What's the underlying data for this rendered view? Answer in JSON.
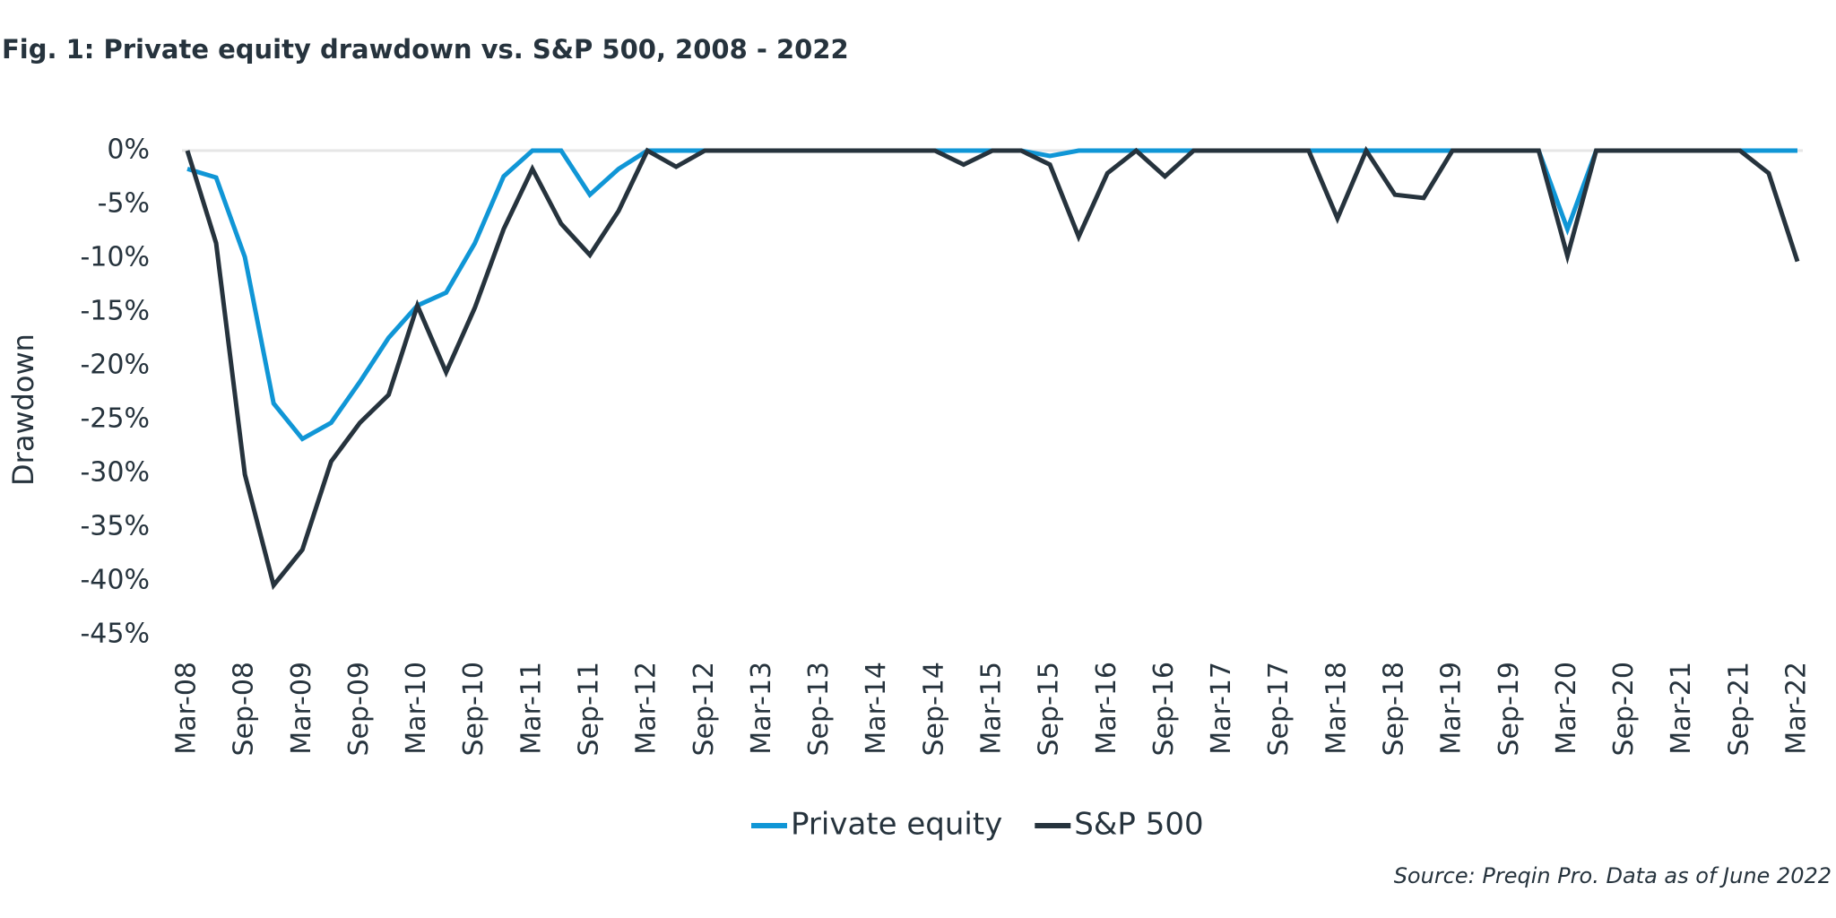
{
  "chart_data": {
    "type": "line",
    "title": "Fig. 1: Private equity drawdown vs. S&P 500, 2008 - 2022",
    "ylabel": "Drawdown",
    "source": "Source: Preqin Pro. Data as of June 2022",
    "categories": [
      "Mar-08",
      null,
      "Sep-08",
      null,
      "Mar-09",
      null,
      "Sep-09",
      null,
      "Mar-10",
      null,
      "Sep-10",
      null,
      "Mar-11",
      null,
      "Sep-11",
      null,
      "Mar-12",
      null,
      "Sep-12",
      null,
      "Mar-13",
      null,
      "Sep-13",
      null,
      "Mar-14",
      null,
      "Sep-14",
      null,
      "Mar-15",
      null,
      "Sep-15",
      null,
      "Mar-16",
      null,
      "Sep-16",
      null,
      "Mar-17",
      null,
      "Sep-17",
      null,
      "Mar-18",
      null,
      "Sep-18",
      null,
      "Mar-19",
      null,
      "Sep-19",
      null,
      "Mar-20",
      null,
      "Sep-20",
      null,
      "Mar-21",
      null,
      "Sep-21",
      null,
      "Mar-22"
    ],
    "series": [
      {
        "name": "Private equity",
        "color": "#1096d6",
        "values": [
          -1.7,
          -2.5,
          -9.9,
          -23.5,
          -26.8,
          -25.3,
          -21.5,
          -17.4,
          -14.4,
          -13.2,
          -8.6,
          -2.4,
          0,
          0,
          -4.1,
          -1.7,
          0,
          0,
          0,
          0,
          0,
          0,
          0,
          0,
          0,
          0,
          0,
          0,
          0,
          0,
          -0.5,
          0,
          0,
          0,
          0,
          0,
          0,
          0,
          0,
          0,
          0,
          0,
          0,
          0,
          0,
          0,
          0,
          0,
          -7.3,
          0,
          0,
          0,
          0,
          0,
          0,
          0,
          0
        ]
      },
      {
        "name": "S&P 500",
        "color": "#26333d",
        "values": [
          0,
          -8.6,
          -30.1,
          -40.4,
          -37.1,
          -28.9,
          -25.3,
          -22.7,
          -14.4,
          -20.6,
          -14.6,
          -7.3,
          -1.7,
          -6.8,
          -9.7,
          -5.6,
          0,
          -1.5,
          0,
          0,
          0,
          0,
          0,
          0,
          0,
          0,
          0,
          -1.3,
          0,
          0,
          -1.3,
          -8.0,
          -2.1,
          0,
          -2.4,
          0,
          0,
          0,
          0,
          0,
          -6.3,
          0,
          -4.1,
          -4.4,
          0,
          0,
          0,
          0,
          -9.8,
          0,
          0,
          0,
          0,
          0,
          0,
          -2.1,
          -10.3
        ]
      }
    ],
    "ylim": [
      -45,
      0
    ],
    "yticks": [
      {
        "value": 0,
        "label": "0%"
      },
      {
        "value": -5,
        "label": "-5%"
      },
      {
        "value": -10,
        "label": "-10%"
      },
      {
        "value": -15,
        "label": "-15%"
      },
      {
        "value": -20,
        "label": "-20%"
      },
      {
        "value": -25,
        "label": "-25%"
      },
      {
        "value": -30,
        "label": "-30%"
      },
      {
        "value": -35,
        "label": "-35%"
      },
      {
        "value": -40,
        "label": "-40%"
      },
      {
        "value": -45,
        "label": "-45%"
      }
    ],
    "legend": "bottom"
  }
}
